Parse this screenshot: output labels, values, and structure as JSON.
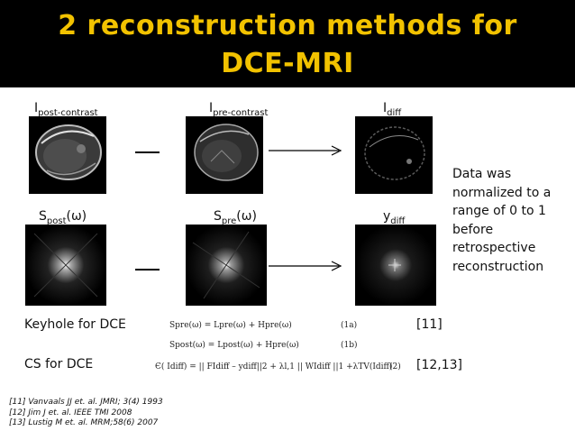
{
  "title": {
    "line1": "2 reconstruction methods for",
    "line2": "DCE-MRI"
  },
  "labels": {
    "post_base": "I",
    "post_sub": "post-contrast",
    "pre_base": "I",
    "pre_sub": "pre-contrast",
    "diff_base": "I",
    "diff_sub": "diff",
    "spost_base": "S",
    "spost_sub": "post",
    "spost_tail": "(ω)",
    "spre_base": "S",
    "spre_sub": "pre",
    "spre_tail": "(ω)",
    "ydiff_base": "y",
    "ydiff_sub": "diff"
  },
  "note": "Data was normalized to a range of 0 to 1 before retrospective reconstruction",
  "methods": {
    "keyhole_label": "Keyhole for DCE",
    "cs_label": "CS for DCE",
    "eq_1a": "Spre(ω) = Lpre(ω) +     Hpre(ω)",
    "eq_1a_num": "(1a)",
    "eq_1b": "Spost(ω) = Lpost(ω) +     Hpre(ω)",
    "eq_1b_num": "(1b)",
    "eq_2": "Є( Idiff) = || FIdiff – ydiff||2 + λl,1 || WIdiff ||1 +λTV(Idiff)",
    "eq_2_num": "(2)",
    "keyhole_ref": "[11]",
    "cs_ref": "[12,13]"
  },
  "references": [
    "[11] Vanvaals JJ et. al. JMRI; 3(4) 1993",
    "[12] Jim J et. al. IEEE TMI 2008",
    "[13] Lustig M et. al. MRM;58(6) 2007"
  ]
}
